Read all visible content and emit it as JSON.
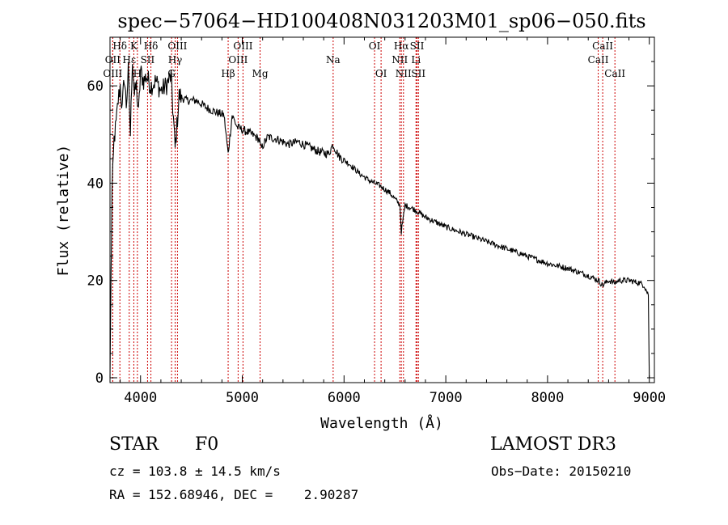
{
  "chart_data": {
    "type": "line",
    "title": "spec−57064−HD100408N031203M01_sp06−050.fits",
    "xlabel": "Wavelength (Å)",
    "ylabel": "Flux (relative)",
    "xlim": [
      3700,
      9050
    ],
    "ylim": [
      -1,
      70
    ],
    "xticks": [
      4000,
      5000,
      6000,
      7000,
      8000,
      9000
    ],
    "yticks": [
      0,
      20,
      40,
      60
    ],
    "grid": false,
    "series": [
      {
        "name": "flux",
        "x": [
          3700,
          3710,
          3720,
          3740,
          3760,
          3780,
          3800,
          3820,
          3840,
          3860,
          3880,
          3900,
          3920,
          3940,
          3960,
          3980,
          4000,
          4030,
          4060,
          4100,
          4150,
          4200,
          4250,
          4300,
          4340,
          4380,
          4450,
          4550,
          4650,
          4750,
          4820,
          4861,
          4900,
          4950,
          5000,
          5100,
          5167,
          5183,
          5250,
          5350,
          5450,
          5550,
          5650,
          5750,
          5850,
          5890,
          5950,
          6050,
          6150,
          6250,
          6350,
          6450,
          6550,
          6563,
          6600,
          6700,
          6800,
          6900,
          7000,
          7200,
          7400,
          7600,
          7800,
          8000,
          8200,
          8400,
          8500,
          8542,
          8600,
          8662,
          8700,
          8800,
          8900,
          8950,
          8990,
          9000
        ],
        "y": [
          0,
          21,
          38,
          49,
          52,
          57,
          60,
          55,
          62,
          56,
          63,
          50,
          66,
          58,
          60,
          54,
          63,
          61,
          62,
          60,
          61,
          59,
          60,
          62,
          47,
          58,
          57,
          57,
          55.5,
          54.5,
          54,
          46,
          54,
          51.5,
          51,
          50,
          49,
          47,
          49.5,
          49,
          48,
          48.5,
          47.5,
          46.5,
          46,
          48,
          45.5,
          44,
          42,
          40.5,
          39.5,
          38,
          35.5,
          30,
          35.5,
          34.5,
          33,
          32,
          31,
          29.5,
          28,
          26.5,
          25,
          23.5,
          22.5,
          21,
          20,
          19,
          20,
          19.5,
          20,
          20,
          19.5,
          19,
          17,
          0
        ]
      }
    ],
    "lines": [
      {
        "label": "OII",
        "wl": 3727,
        "row": 2
      },
      {
        "label": "OIII",
        "wl": 3727,
        "row": 3
      },
      {
        "label": "Hδ",
        "wl": 3797,
        "row": 1
      },
      {
        "label": "Hε",
        "wl": 3889,
        "row": 2
      },
      {
        "label": "K",
        "wl": 3934,
        "row": 1
      },
      {
        "label": "H",
        "wl": 3969,
        "row": 3
      },
      {
        "label": "SII",
        "wl": 4069,
        "row": 2
      },
      {
        "label": "Hδ",
        "wl": 4102,
        "row": 1
      },
      {
        "label": "OIII",
        "wl": 4363,
        "row": 1
      },
      {
        "label": "Hγ",
        "wl": 4340,
        "row": 2
      },
      {
        "label": "G",
        "wl": 4305,
        "row": 3
      },
      {
        "label": "Hβ",
        "wl": 4861,
        "row": 3
      },
      {
        "label": "OIII",
        "wl": 5007,
        "row": 1
      },
      {
        "label": "OIII",
        "wl": 4959,
        "row": 2
      },
      {
        "label": "Mg",
        "wl": 5175,
        "row": 3
      },
      {
        "label": "Na",
        "wl": 5893,
        "row": 2
      },
      {
        "label": "OI",
        "wl": 6300,
        "row": 1
      },
      {
        "label": "OI",
        "wl": 6364,
        "row": 3
      },
      {
        "label": "Hα",
        "wl": 6563,
        "row": 1
      },
      {
        "label": "NII",
        "wl": 6548,
        "row": 2
      },
      {
        "label": "NII",
        "wl": 6584,
        "row": 3
      },
      {
        "label": "SII",
        "wl": 6717,
        "row": 1
      },
      {
        "label": "Li",
        "wl": 6707,
        "row": 2
      },
      {
        "label": "SII",
        "wl": 6731,
        "row": 3
      },
      {
        "label": "CaII",
        "wl": 8542,
        "row": 1
      },
      {
        "label": "CaII",
        "wl": 8498,
        "row": 2
      },
      {
        "label": "CaII",
        "wl": 8662,
        "row": 3
      }
    ],
    "colors": {
      "spectrum": "#000000",
      "line_markers": "#cc0000",
      "axes": "#000000"
    }
  },
  "info": {
    "object_type": "STAR",
    "subclass": "F0",
    "survey": "LAMOST DR3",
    "cz": "cz = 103.8 ± 14.5 km/s",
    "obs_date": "Obs−Date: 20150210",
    "coords": "RA = 152.68946, DEC =    2.90287"
  }
}
